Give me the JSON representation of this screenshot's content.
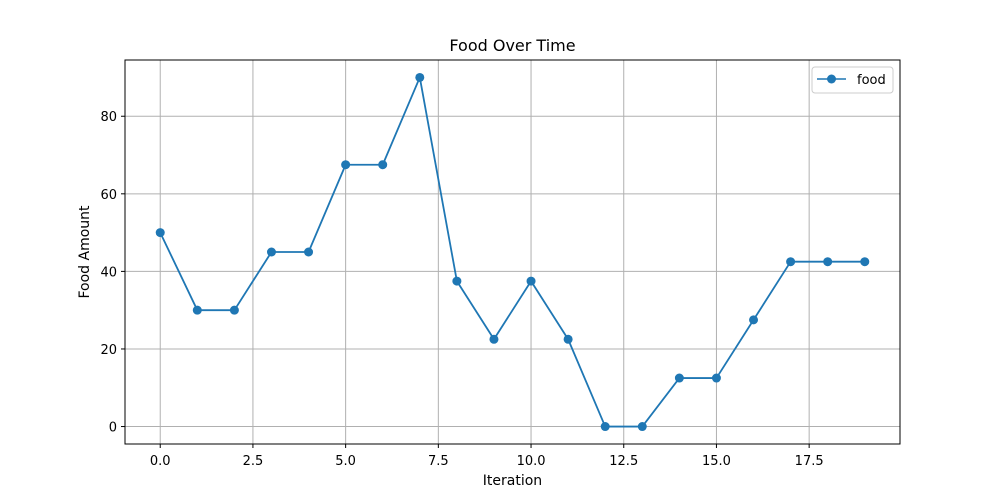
{
  "chart_data": {
    "type": "line",
    "title": "Food Over Time",
    "xlabel": "Iteration",
    "ylabel": "Food Amount",
    "xlim": [
      -0.95,
      19.95
    ],
    "ylim": [
      -4.5,
      94.5
    ],
    "xticks": [
      0.0,
      2.5,
      5.0,
      7.5,
      10.0,
      12.5,
      15.0,
      17.5
    ],
    "xtick_labels": [
      "0.0",
      "2.5",
      "5.0",
      "7.5",
      "10.0",
      "12.5",
      "15.0",
      "17.5"
    ],
    "yticks": [
      0,
      20,
      40,
      60,
      80
    ],
    "ytick_labels": [
      "0",
      "20",
      "40",
      "60",
      "80"
    ],
    "grid": true,
    "legend_position": "top-right",
    "series": [
      {
        "name": "food",
        "color": "#1f77b4",
        "marker": "circle",
        "x": [
          0,
          1,
          2,
          3,
          4,
          5,
          6,
          7,
          8,
          9,
          10,
          11,
          12,
          13,
          14,
          15,
          16,
          17,
          18,
          19
        ],
        "y": [
          50,
          30,
          30,
          45,
          45,
          67.5,
          67.5,
          90,
          37.5,
          22.5,
          37.5,
          22.5,
          0,
          0,
          12.5,
          12.5,
          27.5,
          42.5,
          42.5,
          42.5
        ]
      }
    ]
  }
}
